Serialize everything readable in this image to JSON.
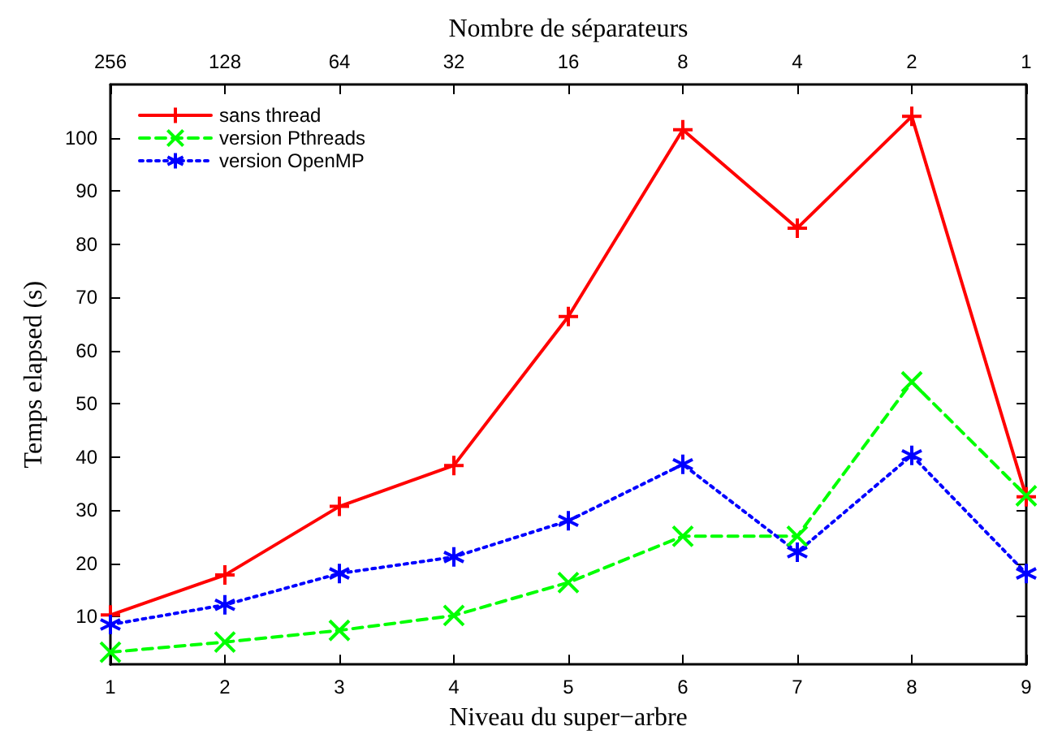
{
  "chart_data": {
    "type": "line",
    "xlabel": "Niveau du super−arbre",
    "ylabel": "Temps elapsed (s)",
    "x2label": "Nombre de séparateurs",
    "x": [
      1,
      2,
      3,
      4,
      5,
      6,
      7,
      8,
      9
    ],
    "xlim": [
      1,
      9
    ],
    "xticks": [
      1,
      2,
      3,
      4,
      5,
      6,
      7,
      8,
      9
    ],
    "x2lim": [
      256,
      1
    ],
    "x2ticks": [
      256,
      128,
      64,
      32,
      16,
      8,
      4,
      2,
      1
    ],
    "log": "x2",
    "ylim": [
      1,
      110
    ],
    "yticks": [
      10,
      20,
      30,
      40,
      50,
      60,
      70,
      80,
      90,
      100
    ],
    "grid": false,
    "legend": "top left",
    "series": [
      {
        "name": "sans thread",
        "color": "#ff0000",
        "marker": "cross",
        "line_style": "solid",
        "values": [
          10.3,
          17.8,
          30.7,
          38.4,
          66.4,
          101.5,
          83,
          104,
          32.5
        ]
      },
      {
        "name": "version Pthreads",
        "color": "#00ff00",
        "marker": "cross",
        "line_style": "dashed",
        "values": [
          3.3,
          5.2,
          7.4,
          10.2,
          16.4,
          25.1,
          25.1,
          54.1,
          32.7
        ]
      },
      {
        "name": "version OpenMP",
        "color": "#0000ff",
        "marker": "cross",
        "line_style": "dotted",
        "values": [
          8.5,
          12.2,
          18.1,
          21.2,
          28,
          38.6,
          22.1,
          40.3,
          18.1
        ]
      }
    ]
  }
}
